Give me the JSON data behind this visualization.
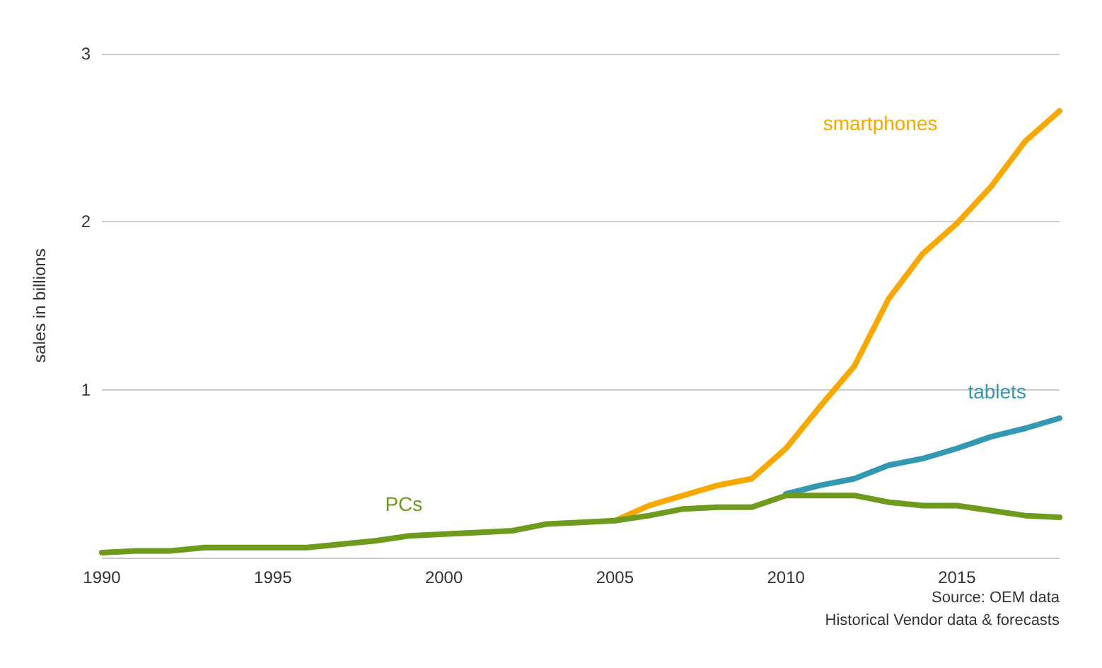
{
  "chart_data": {
    "type": "line",
    "ylabel": "sales in billions",
    "x": [
      1990,
      1991,
      1992,
      1993,
      1994,
      1995,
      1996,
      1997,
      1998,
      1999,
      2000,
      2001,
      2002,
      2003,
      2004,
      2005,
      2006,
      2007,
      2008,
      2009,
      2010,
      2011,
      2012,
      2013,
      2014,
      2015,
      2016,
      2017,
      2018
    ],
    "series": [
      {
        "name": "smartphones",
        "color": "#f9a800",
        "values": [
          null,
          null,
          null,
          null,
          null,
          null,
          null,
          null,
          null,
          null,
          null,
          null,
          null,
          null,
          null,
          0.22,
          0.31,
          0.37,
          0.43,
          0.47,
          0.65,
          0.9,
          1.14,
          1.54,
          1.81,
          1.99,
          2.21,
          2.48,
          2.66
        ]
      },
      {
        "name": "tablets",
        "color": "#3399b3",
        "values": [
          null,
          null,
          null,
          null,
          null,
          null,
          null,
          null,
          null,
          null,
          null,
          null,
          null,
          null,
          null,
          null,
          null,
          null,
          null,
          null,
          0.38,
          0.43,
          0.47,
          0.55,
          0.59,
          0.65,
          0.72,
          0.77,
          0.83
        ]
      },
      {
        "name": "PCs",
        "color": "#6e9a1d",
        "values": [
          0.03,
          0.04,
          0.04,
          0.06,
          0.06,
          0.06,
          0.06,
          0.08,
          0.1,
          0.13,
          0.14,
          0.15,
          0.16,
          0.2,
          0.21,
          0.22,
          0.25,
          0.29,
          0.3,
          0.3,
          0.37,
          0.37,
          0.37,
          0.33,
          0.31,
          0.31,
          0.28,
          0.25,
          0.24
        ]
      }
    ],
    "xlim": [
      1990,
      2018
    ],
    "xticks": [
      1990,
      1995,
      2000,
      2005,
      2010,
      2015
    ],
    "ylim": [
      0,
      3
    ],
    "yticks": [
      {
        "value": 0,
        "label": null
      },
      1,
      2,
      3
    ],
    "grid": "y",
    "legend": false,
    "marker": "none",
    "line_style": "solid",
    "annotations": [
      "Source: OEM data",
      "Historical Vendor data & forecasts"
    ]
  }
}
